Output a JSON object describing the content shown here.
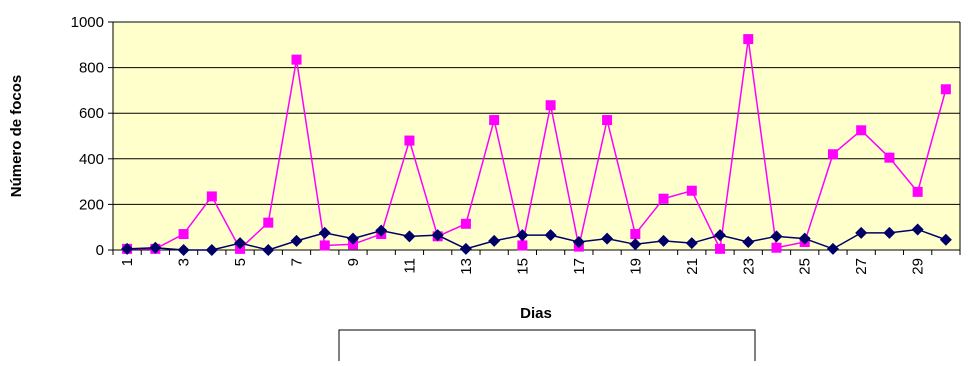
{
  "chart_data": {
    "type": "line",
    "title": "",
    "xlabel": "Dias",
    "ylabel": "Número de focos",
    "ylim": [
      0,
      1000
    ],
    "yticks": [
      "0",
      "200",
      "400",
      "600",
      "800",
      "1000"
    ],
    "x": [
      1,
      2,
      3,
      4,
      5,
      6,
      7,
      8,
      9,
      10,
      11,
      12,
      13,
      14,
      15,
      16,
      17,
      18,
      19,
      20,
      21,
      22,
      23,
      24,
      25,
      26,
      27,
      28,
      29,
      30
    ],
    "xtick_labels": [
      "1",
      "3",
      "5",
      "7",
      "9",
      "11",
      "13",
      "15",
      "17",
      "19",
      "21",
      "23",
      "25",
      "27",
      "29"
    ],
    "grid": "horizontal",
    "plot_background": "#ffffcc",
    "legend": "bottom (box empty)",
    "series": [
      {
        "color": "#ff00ff",
        "marker": "square",
        "values": [
          5,
          5,
          70,
          235,
          5,
          120,
          835,
          20,
          25,
          70,
          480,
          60,
          115,
          570,
          20,
          635,
          15,
          570,
          70,
          225,
          260,
          5,
          925,
          10,
          35,
          420,
          525,
          405,
          255,
          705
        ]
      },
      {
        "color": "#000066",
        "marker": "diamond",
        "values": [
          5,
          10,
          0,
          0,
          30,
          0,
          40,
          75,
          50,
          85,
          60,
          65,
          5,
          40,
          65,
          65,
          35,
          50,
          25,
          40,
          30,
          65,
          35,
          60,
          50,
          5,
          75,
          75,
          90,
          45
        ]
      }
    ]
  }
}
